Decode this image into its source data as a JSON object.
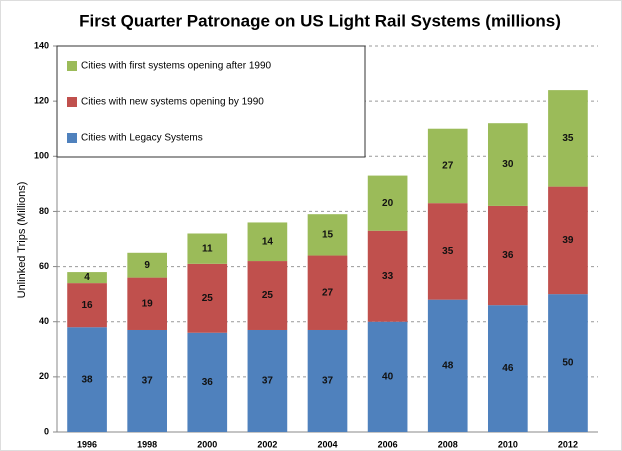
{
  "chart_data": {
    "type": "stacked_bar",
    "title": "First Quarter Patronage on US Light Rail Systems (millions)",
    "y_label": "Unlinked Trips (Millions)",
    "categories": [
      "1996",
      "1998",
      "2000",
      "2002",
      "2004",
      "2006",
      "2008",
      "2010",
      "2012"
    ],
    "series": [
      {
        "name": "Cities with Legacy Systems",
        "color": "#4f81bd",
        "values": [
          38,
          37,
          36,
          37,
          37,
          40,
          48,
          46,
          50
        ]
      },
      {
        "name": "Cities with new systems opening by 1990",
        "color": "#c0504d",
        "values": [
          16,
          19,
          25,
          25,
          27,
          33,
          35,
          36,
          39
        ]
      },
      {
        "name": "Cities with first systems opening after 1990",
        "color": "#9bbb59",
        "values": [
          4,
          9,
          11,
          14,
          15,
          20,
          27,
          30,
          35
        ]
      }
    ],
    "ylim": [
      0,
      140
    ],
    "yticks": [
      0,
      20,
      40,
      60,
      80,
      100,
      120,
      140
    ],
    "grid": true,
    "legend": "top-left"
  }
}
